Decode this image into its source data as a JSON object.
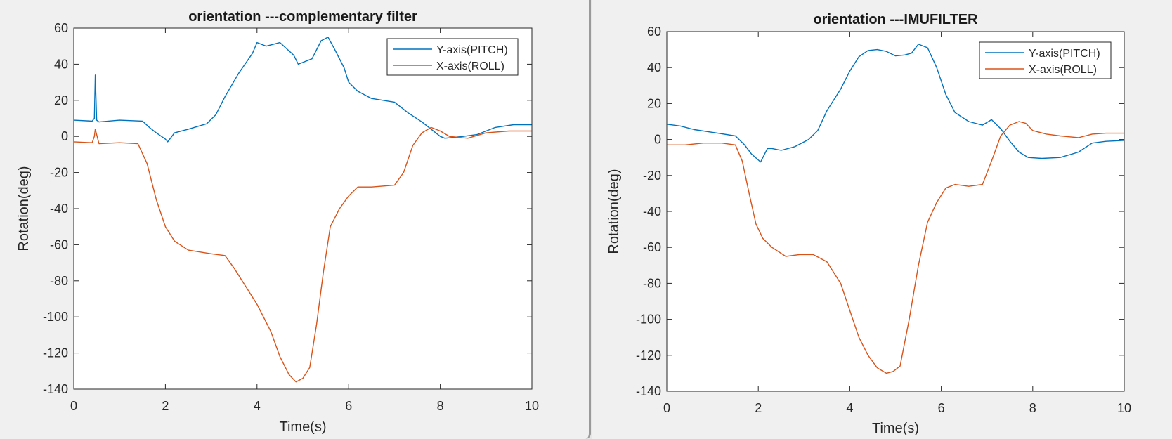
{
  "chart_data": [
    {
      "type": "line",
      "title": "orientation ---complementary filter",
      "xlabel": "Time(s)",
      "ylabel": "Rotation(deg)",
      "xlim": [
        0,
        10
      ],
      "ylim": [
        -140,
        60
      ],
      "xticks": [
        "0",
        "2",
        "4",
        "6",
        "8",
        "10"
      ],
      "yticks": [
        "60",
        "40",
        "20",
        "0",
        "-20",
        "-40",
        "-60",
        "-80",
        "-100",
        "-120",
        "-140"
      ],
      "grid": false,
      "legend_position": "top-right",
      "series": [
        {
          "name": "Y-axis(PITCH)",
          "color": "#0072bd",
          "x": [
            0,
            0.4,
            0.45,
            0.47,
            0.5,
            0.55,
            1.0,
            1.5,
            1.65,
            1.8,
            2.0,
            2.05,
            2.2,
            2.5,
            2.9,
            3.1,
            3.3,
            3.6,
            3.9,
            4.0,
            4.2,
            4.5,
            4.8,
            4.9,
            5.2,
            5.4,
            5.55,
            5.7,
            5.9,
            6.0,
            6.2,
            6.5,
            7.0,
            7.3,
            7.6,
            7.8,
            8.0,
            8.1,
            8.5,
            8.8,
            9.2,
            9.6,
            10.0
          ],
          "y": [
            9,
            8.5,
            10,
            34,
            9,
            8,
            9,
            8.5,
            5,
            2,
            -1.5,
            -3,
            2,
            4,
            7,
            12,
            22,
            35,
            46,
            52,
            50,
            52,
            45,
            40,
            43,
            53,
            55,
            48,
            38,
            30,
            25,
            21,
            19,
            13,
            8,
            4,
            0,
            -1,
            0,
            1,
            5,
            6.5,
            6.5
          ]
        },
        {
          "name": "X-axis(ROLL)",
          "color": "#d95319",
          "x": [
            0,
            0.4,
            0.45,
            0.47,
            0.55,
            1.0,
            1.4,
            1.6,
            1.8,
            2.0,
            2.2,
            2.5,
            3.0,
            3.3,
            3.5,
            3.8,
            4.0,
            4.3,
            4.5,
            4.7,
            4.85,
            5.0,
            5.15,
            5.3,
            5.45,
            5.6,
            5.8,
            6.0,
            6.2,
            6.5,
            7.0,
            7.2,
            7.4,
            7.6,
            7.8,
            8.0,
            8.2,
            8.6,
            9.0,
            9.5,
            10.0
          ],
          "y": [
            -3,
            -3.5,
            0,
            4,
            -4,
            -3.5,
            -4,
            -15,
            -35,
            -50,
            -58,
            -63,
            -65,
            -66,
            -73,
            -85,
            -93,
            -108,
            -122,
            -132,
            -136,
            -134,
            -128,
            -104,
            -75,
            -50,
            -40,
            -33,
            -28,
            -28,
            -27,
            -20,
            -5,
            2,
            5,
            3,
            0,
            -1,
            2,
            3,
            3
          ]
        }
      ]
    },
    {
      "type": "line",
      "title": "orientation ---IMUFILTER",
      "xlabel": "Time(s)",
      "ylabel": "Rotation(deg)",
      "xlim": [
        0,
        10
      ],
      "ylim": [
        -140,
        60
      ],
      "xticks": [
        "0",
        "2",
        "4",
        "6",
        "8",
        "10"
      ],
      "yticks": [
        "60",
        "40",
        "20",
        "0",
        "-20",
        "-40",
        "-60",
        "-80",
        "-100",
        "-120",
        "-140"
      ],
      "grid": false,
      "legend_position": "top-right",
      "series": [
        {
          "name": "Y-axis(PITCH)",
          "color": "#0072bd",
          "x": [
            0,
            0.3,
            0.6,
            1.0,
            1.5,
            1.7,
            1.85,
            2.05,
            2.2,
            2.3,
            2.5,
            2.8,
            3.1,
            3.3,
            3.5,
            3.8,
            4.0,
            4.2,
            4.4,
            4.6,
            4.8,
            5.0,
            5.2,
            5.35,
            5.5,
            5.7,
            5.9,
            6.1,
            6.3,
            6.6,
            6.9,
            7.1,
            7.3,
            7.5,
            7.7,
            7.9,
            8.2,
            8.6,
            9.0,
            9.3,
            9.6,
            10.0
          ],
          "y": [
            8.5,
            7.5,
            5.5,
            4,
            2,
            -3,
            -8,
            -12.5,
            -5,
            -5,
            -6,
            -4,
            0,
            5,
            16,
            28,
            38,
            46,
            49.5,
            50,
            49,
            46.5,
            47,
            48,
            53,
            51,
            40,
            25,
            15,
            10,
            8,
            11,
            6,
            -1,
            -7,
            -10,
            -10.5,
            -10,
            -7,
            -2,
            -1,
            -0.5
          ]
        },
        {
          "name": "X-axis(ROLL)",
          "color": "#d95319",
          "x": [
            0,
            0.4,
            0.8,
            1.2,
            1.5,
            1.65,
            1.8,
            1.95,
            2.1,
            2.3,
            2.6,
            2.9,
            3.2,
            3.5,
            3.8,
            4.0,
            4.2,
            4.4,
            4.6,
            4.8,
            4.95,
            5.1,
            5.3,
            5.5,
            5.7,
            5.9,
            6.1,
            6.3,
            6.6,
            6.9,
            7.1,
            7.3,
            7.5,
            7.7,
            7.85,
            8.0,
            8.3,
            8.6,
            9.0,
            9.3,
            9.6,
            10.0
          ],
          "y": [
            -3,
            -3,
            -2,
            -2,
            -3,
            -12,
            -30,
            -47,
            -55,
            -60,
            -65,
            -64,
            -64,
            -68,
            -80,
            -95,
            -110,
            -120,
            -127,
            -130,
            -129,
            -126,
            -100,
            -70,
            -46,
            -35,
            -27,
            -25,
            -26,
            -25,
            -12,
            2,
            8,
            10,
            9,
            5,
            3,
            2,
            1,
            3,
            3.5,
            3.5
          ]
        }
      ]
    }
  ]
}
